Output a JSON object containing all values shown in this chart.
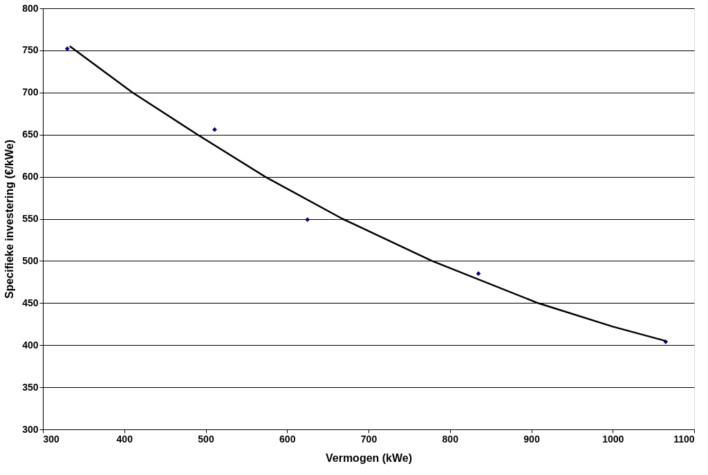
{
  "chart_data": {
    "type": "scatter",
    "xlabel": "Vermogen (kWe)",
    "ylabel": "Specifieke investering (€/kWe)",
    "xlim": [
      300,
      1100
    ],
    "xticks": [
      300,
      400,
      500,
      600,
      700,
      800,
      900,
      1000,
      1100
    ],
    "ylim": [
      300,
      800
    ],
    "yticks": [
      300,
      350,
      400,
      450,
      500,
      550,
      600,
      650,
      700,
      750,
      800
    ],
    "grid": "y",
    "series": [
      {
        "color": "#000080",
        "marker": "diamond",
        "x": [
          330,
          511,
          625,
          835,
          1065
        ],
        "values": [
          752,
          656,
          549,
          485,
          404
        ]
      },
      {
        "type": "line",
        "color": "#000000",
        "line_style": "solid",
        "x": [
          333,
          410,
          490,
          573,
          668,
          778,
          908,
          1000,
          1065
        ],
        "values": [
          755,
          700,
          650,
          600,
          550,
          500,
          450,
          422,
          405
        ]
      }
    ]
  }
}
